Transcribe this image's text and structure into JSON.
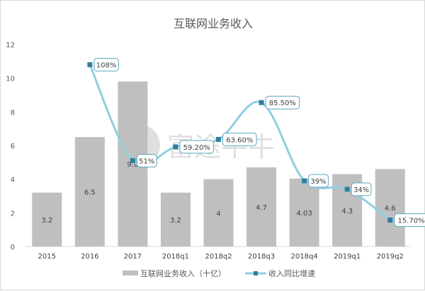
{
  "chart_data": {
    "type": "bar+line",
    "title": "互联网业务收入",
    "categories": [
      "2015",
      "2016",
      "2017",
      "2018q1",
      "2018q2",
      "2018q3",
      "2018q4",
      "2019q1",
      "2019q2"
    ],
    "series": [
      {
        "name": "互联网业务收入（十亿）",
        "type": "bar",
        "values": [
          3.2,
          6.5,
          9.8,
          3.2,
          4,
          4.7,
          4.03,
          4.3,
          4.6
        ],
        "labels": [
          "3.2",
          "6.5",
          "9.8",
          "3.2",
          "4",
          "4.7",
          "4.03",
          "4.3",
          "4.6"
        ],
        "color": "#bfbfbf"
      },
      {
        "name": "收入同比增速",
        "type": "line",
        "values": [
          null,
          108,
          51,
          59.2,
          63.6,
          85.5,
          39,
          34,
          15.7
        ],
        "labels": [
          null,
          "108%",
          "51%",
          "59.20%",
          "63.60%",
          "85.50%",
          "39%",
          "34%",
          "15.70%"
        ],
        "color": "#8ecfe0",
        "marker_color": "#2e7f9e"
      }
    ],
    "yticks": [
      0,
      2,
      4,
      6,
      8,
      10,
      12
    ],
    "ylim": [
      0,
      12
    ],
    "grid": false,
    "legend": "bottom"
  },
  "watermark": "富途牛牛"
}
